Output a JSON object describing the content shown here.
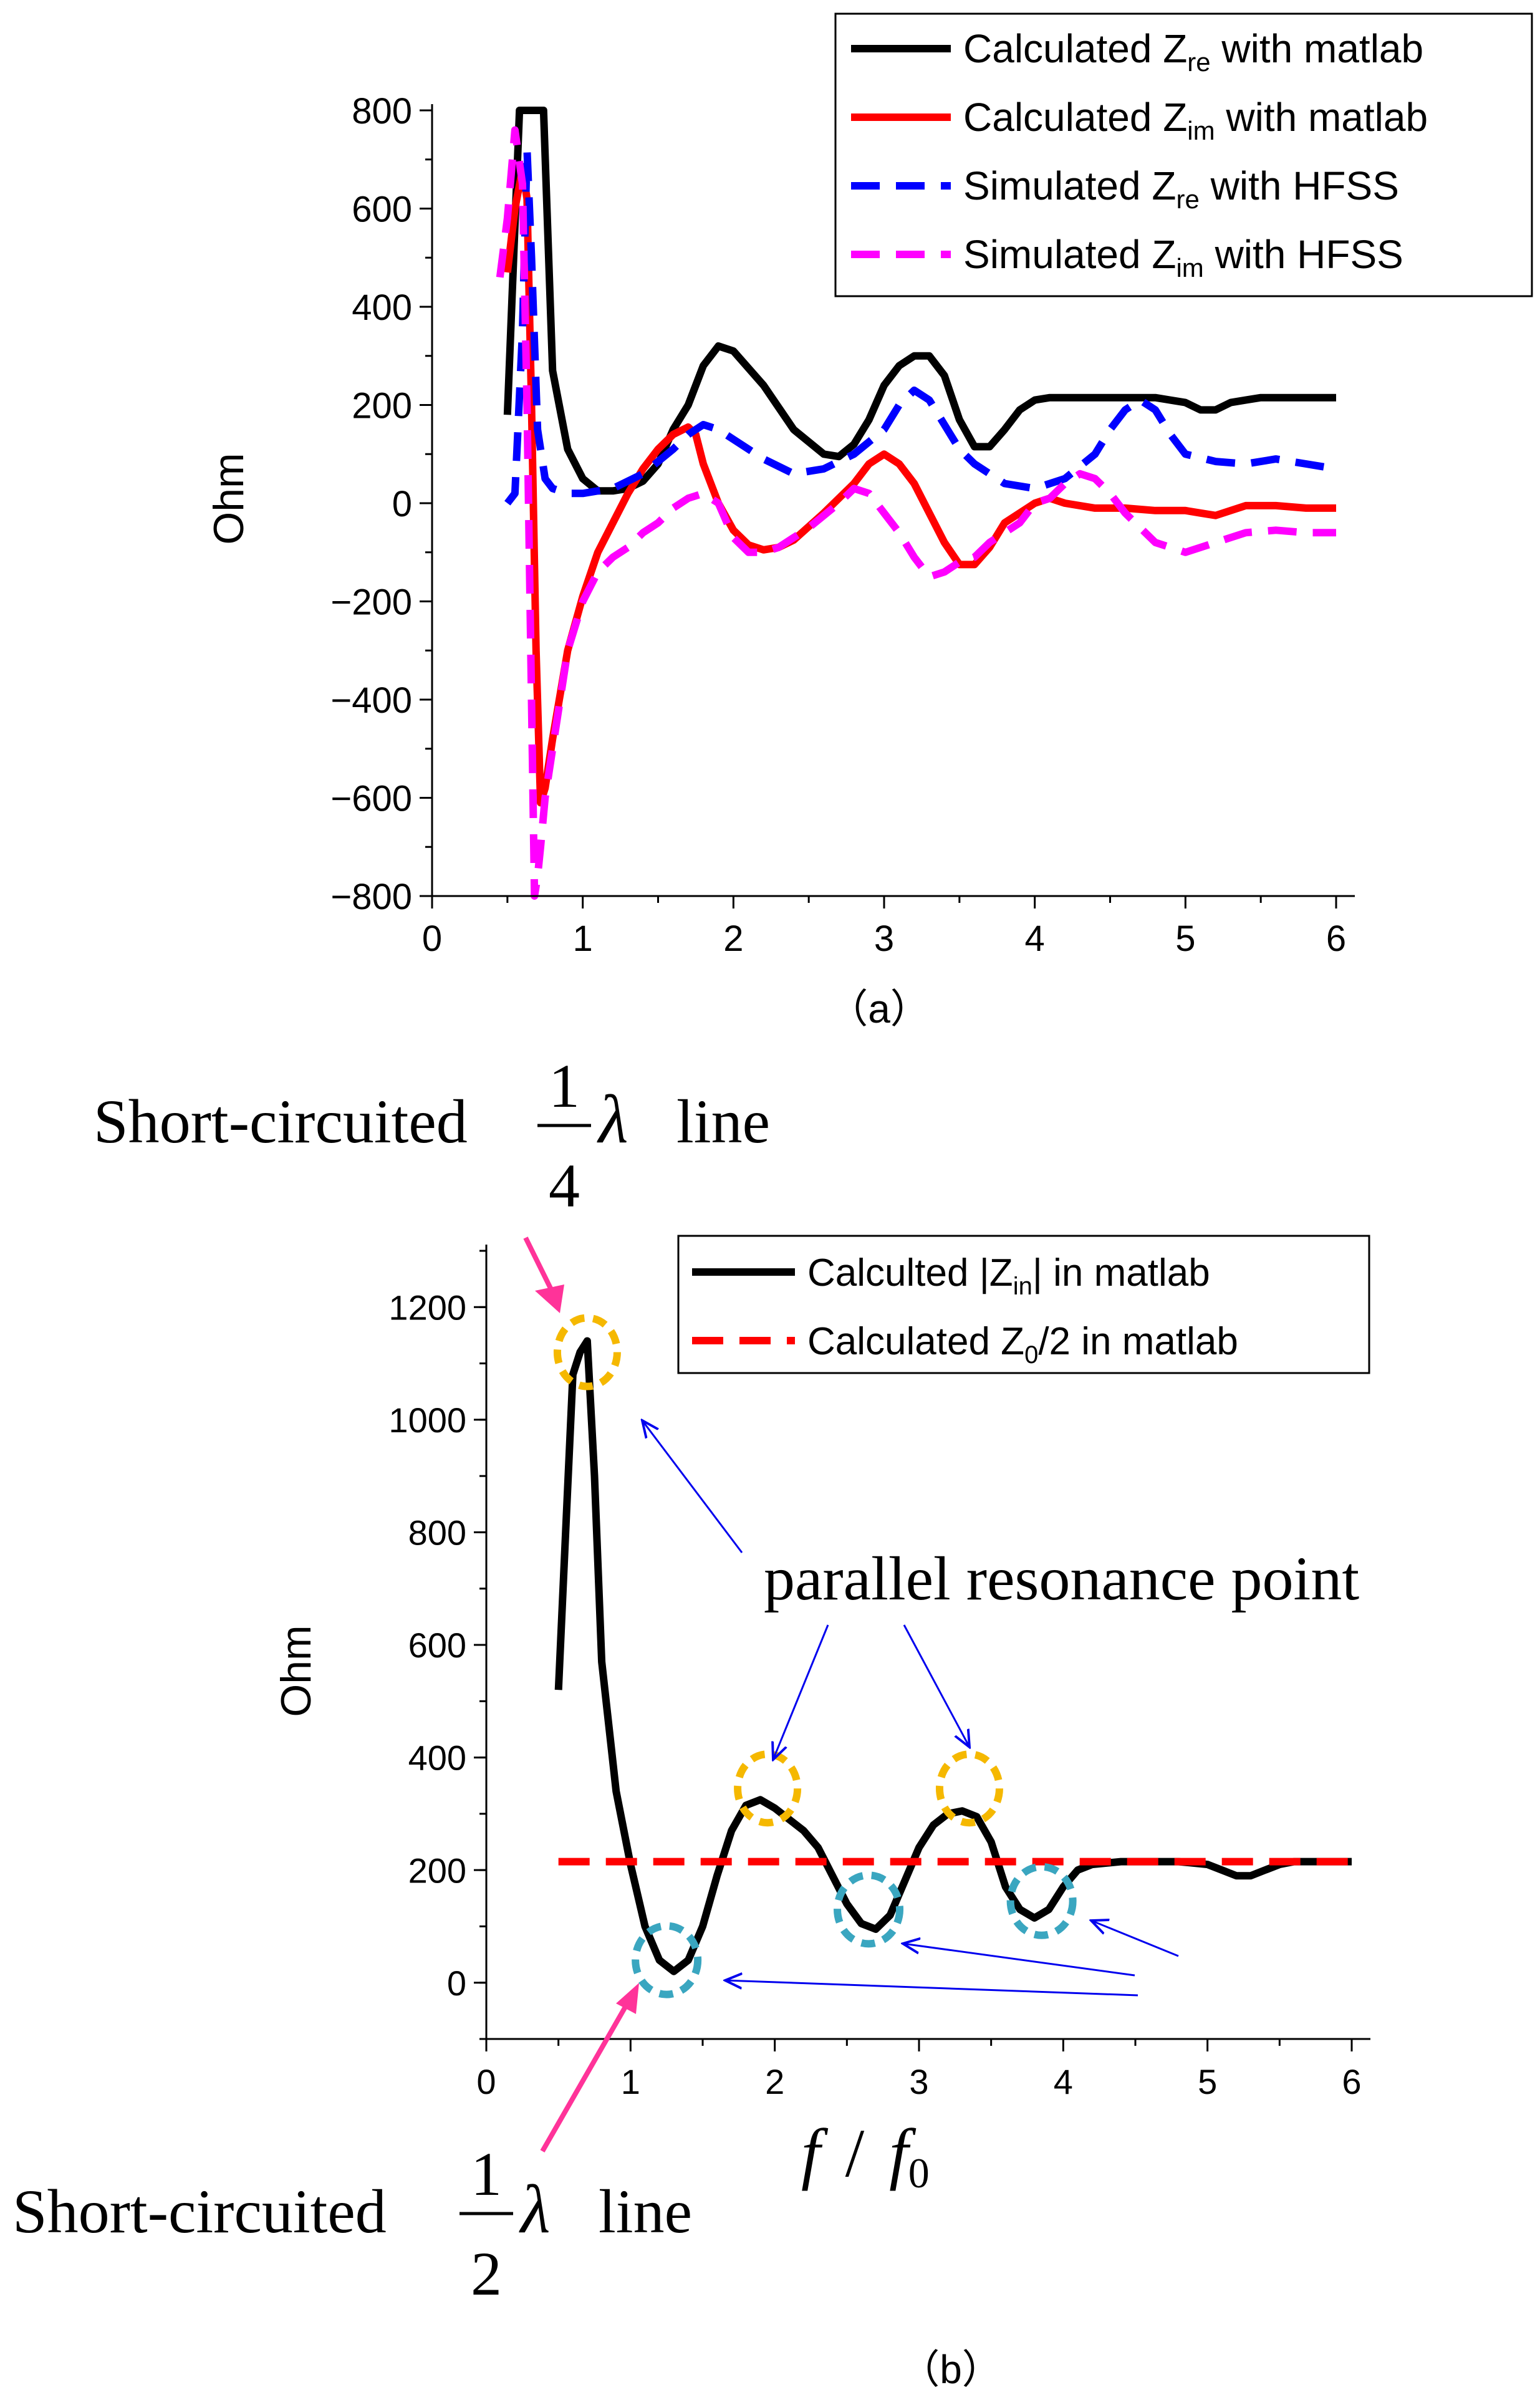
{
  "chart_data": [
    {
      "type": "line",
      "panel_label": "（a）",
      "xlabel": "",
      "ylabel": "Ohm",
      "xlim": [
        0,
        6
      ],
      "ylim": [
        -800,
        800
      ],
      "xticks": [
        "0",
        "1",
        "2",
        "3",
        "4",
        "5",
        "6"
      ],
      "yticks": [
        "800",
        "600",
        "400",
        "200",
        "0",
        "−200",
        "−400",
        "−600",
        "−800"
      ],
      "grid": false,
      "legend_placement": "top-right",
      "series": [
        {
          "name": "Calculated Z_re with matlab",
          "legend": {
            "pre": "Calculated Z",
            "sub": "re",
            "post": " with matlab"
          },
          "color": "#000000",
          "dash": "solid",
          "x": [
            0.5,
            0.58,
            0.63,
            0.66,
            0.7,
            0.74,
            0.8,
            0.9,
            1.0,
            1.1,
            1.2,
            1.3,
            1.4,
            1.5,
            1.6,
            1.7,
            1.8,
            1.9,
            2.0,
            2.2,
            2.4,
            2.6,
            2.7,
            2.8,
            2.9,
            3.0,
            3.1,
            3.2,
            3.3,
            3.4,
            3.5,
            3.6,
            3.7,
            3.8,
            3.9,
            4.0,
            4.1,
            4.2,
            4.4,
            4.6,
            4.8,
            5.0,
            5.1,
            5.2,
            5.3,
            5.4,
            5.5,
            5.6,
            5.7,
            5.8,
            6.0
          ],
          "y": [
            180,
            800,
            800,
            800,
            800,
            800,
            270,
            110,
            50,
            25,
            25,
            30,
            45,
            80,
            150,
            200,
            280,
            320,
            310,
            240,
            150,
            100,
            95,
            120,
            170,
            240,
            280,
            300,
            300,
            260,
            170,
            115,
            115,
            150,
            190,
            210,
            215,
            215,
            215,
            215,
            215,
            205,
            190,
            190,
            205,
            210,
            215,
            215,
            215,
            215,
            215
          ]
        },
        {
          "name": "Calculated Z_im with matlab",
          "legend": {
            "pre": "Calculated Z",
            "sub": "im",
            "post": " with matlab"
          },
          "color": "#ff0000",
          "dash": "solid",
          "x": [
            0.5,
            0.55,
            0.6,
            0.63,
            0.66,
            0.69,
            0.72,
            0.75,
            0.8,
            0.9,
            1.0,
            1.1,
            1.2,
            1.3,
            1.4,
            1.5,
            1.6,
            1.7,
            1.75,
            1.8,
            1.9,
            2.0,
            2.1,
            2.2,
            2.3,
            2.4,
            2.6,
            2.8,
            2.9,
            3.0,
            3.1,
            3.2,
            3.3,
            3.4,
            3.5,
            3.6,
            3.7,
            3.8,
            4.0,
            4.1,
            4.2,
            4.4,
            4.6,
            4.8,
            5.0,
            5.1,
            5.2,
            5.3,
            5.4,
            5.6,
            5.8,
            6.0
          ],
          "y": [
            470,
            600,
            680,
            620,
            200,
            -300,
            -610,
            -580,
            -480,
            -300,
            -190,
            -100,
            -40,
            20,
            70,
            110,
            140,
            155,
            140,
            80,
            0,
            -55,
            -85,
            -95,
            -90,
            -75,
            -20,
            40,
            80,
            100,
            80,
            40,
            -20,
            -80,
            -125,
            -125,
            -90,
            -40,
            0,
            10,
            0,
            -10,
            -10,
            -15,
            -15,
            -20,
            -25,
            -15,
            -5,
            -5,
            -10,
            -10
          ]
        },
        {
          "name": "Simulated Z_re with HFSS",
          "legend": {
            "pre": "Simulated Z",
            "sub": "re",
            "post": " with HFSS"
          },
          "color": "#0000ff",
          "dash": "dashed",
          "x": [
            0.5,
            0.55,
            0.6,
            0.63,
            0.66,
            0.7,
            0.75,
            0.8,
            0.9,
            1.0,
            1.1,
            1.2,
            1.4,
            1.6,
            1.7,
            1.8,
            1.9,
            2.0,
            2.2,
            2.4,
            2.6,
            2.8,
            3.0,
            3.1,
            3.2,
            3.3,
            3.4,
            3.5,
            3.6,
            3.8,
            4.0,
            4.2,
            4.4,
            4.5,
            4.6,
            4.7,
            4.8,
            4.9,
            5.0,
            5.2,
            5.4,
            5.6,
            5.8,
            6.0
          ],
          "y": [
            0,
            20,
            350,
            720,
            500,
            150,
            50,
            30,
            20,
            20,
            25,
            30,
            60,
            110,
            140,
            160,
            150,
            130,
            90,
            60,
            70,
            100,
            150,
            200,
            230,
            210,
            160,
            110,
            80,
            40,
            30,
            50,
            100,
            150,
            190,
            210,
            190,
            140,
            100,
            85,
            80,
            90,
            80,
            70
          ]
        },
        {
          "name": "Simulated Z_im with HFSS",
          "legend": {
            "pre": "Simulated Z",
            "sub": "im",
            "post": " with HFSS"
          },
          "color": "#ff00ff",
          "dash": "dashed",
          "x": [
            0.45,
            0.5,
            0.55,
            0.6,
            0.63,
            0.66,
            0.68,
            0.7,
            0.72,
            0.75,
            0.8,
            0.9,
            1.0,
            1.1,
            1.2,
            1.3,
            1.4,
            1.5,
            1.6,
            1.7,
            1.8,
            1.9,
            2.0,
            2.1,
            2.2,
            2.3,
            2.5,
            2.7,
            2.8,
            2.9,
            3.0,
            3.1,
            3.2,
            3.3,
            3.4,
            3.5,
            3.6,
            3.7,
            3.9,
            4.0,
            4.1,
            4.2,
            4.3,
            4.4,
            4.5,
            4.6,
            4.7,
            4.8,
            5.0,
            5.2,
            5.4,
            5.6,
            5.8,
            6.0
          ],
          "y": [
            460,
            580,
            760,
            650,
            200,
            -400,
            -800,
            -760,
            -700,
            -600,
            -500,
            -300,
            -200,
            -140,
            -110,
            -90,
            -60,
            -40,
            -10,
            10,
            20,
            0,
            -70,
            -100,
            -100,
            -90,
            -50,
            0,
            30,
            20,
            -20,
            -60,
            -110,
            -150,
            -140,
            -120,
            -110,
            -80,
            -40,
            0,
            10,
            40,
            60,
            50,
            20,
            -20,
            -50,
            -80,
            -100,
            -80,
            -60,
            -55,
            -60,
            -60
          ]
        }
      ]
    },
    {
      "type": "line",
      "panel_label": "（b）",
      "xlabel": "f / f0",
      "xlabel_parts": {
        "f": "f",
        "slash": "/",
        "f0": "f",
        "sub0": "0"
      },
      "ylabel": "Ohm",
      "xlim": [
        0,
        6
      ],
      "ylim": [
        -100,
        1300
      ],
      "xticks": [
        "0",
        "1",
        "2",
        "3",
        "4",
        "5",
        "6"
      ],
      "yticks": [
        "1200",
        "1000",
        "800",
        "600",
        "400",
        "200",
        "0"
      ],
      "grid": false,
      "legend_placement": "top-right",
      "series": [
        {
          "name": "Calculted |Z_in| in matlab",
          "legend": {
            "pre": "Calculted |Z",
            "sub": "in",
            "post": "| in matlab"
          },
          "color": "#000000",
          "dash": "solid",
          "x": [
            0.5,
            0.55,
            0.6,
            0.65,
            0.7,
            0.75,
            0.8,
            0.9,
            1.0,
            1.1,
            1.2,
            1.3,
            1.4,
            1.5,
            1.6,
            1.7,
            1.8,
            1.9,
            2.0,
            2.1,
            2.2,
            2.3,
            2.4,
            2.5,
            2.6,
            2.7,
            2.8,
            2.9,
            3.0,
            3.1,
            3.2,
            3.3,
            3.4,
            3.5,
            3.6,
            3.7,
            3.8,
            3.9,
            4.0,
            4.1,
            4.2,
            4.4,
            4.6,
            4.8,
            5.0,
            5.1,
            5.2,
            5.3,
            5.4,
            5.5,
            5.6,
            5.8,
            6.0
          ],
          "y": [
            520,
            800,
            1080,
            1120,
            1140,
            900,
            570,
            340,
            210,
            100,
            40,
            20,
            40,
            100,
            190,
            270,
            315,
            325,
            310,
            290,
            270,
            240,
            190,
            140,
            105,
            95,
            120,
            180,
            240,
            280,
            300,
            305,
            295,
            250,
            170,
            130,
            115,
            130,
            170,
            200,
            210,
            215,
            215,
            215,
            210,
            200,
            190,
            190,
            200,
            210,
            215,
            215,
            215
          ]
        },
        {
          "name": "Calculated Z0/2 in matlab",
          "legend": {
            "pre": "Calculated Z",
            "sub": "0",
            "post": "/2 in matlab"
          },
          "color": "#ff0000",
          "dash": "dashed",
          "x": [
            0.5,
            6.0
          ],
          "y": [
            215,
            215
          ]
        }
      ],
      "annotations": {
        "quarter_wave": {
          "prefix": "Short-circuited",
          "num": "1",
          "den": "4",
          "lambda": "λ",
          "suffix": "line"
        },
        "half_wave": {
          "prefix": "Short-circuited",
          "num": "1",
          "den": "2",
          "lambda": "λ",
          "suffix": "line"
        },
        "parallel": "parallel resonance point",
        "peak_circles": [
          [
            0.7,
            1120
          ],
          [
            1.95,
            345
          ],
          [
            3.35,
            345
          ]
        ],
        "dip_circles": [
          [
            1.25,
            40
          ],
          [
            2.65,
            130
          ],
          [
            3.85,
            145
          ]
        ],
        "colors": {
          "peak_circle": "#f5b800",
          "dip_circle": "#3aa6c0",
          "blue_arrow": "#0000ee",
          "pink_arrow": "#ff3399"
        }
      }
    }
  ]
}
